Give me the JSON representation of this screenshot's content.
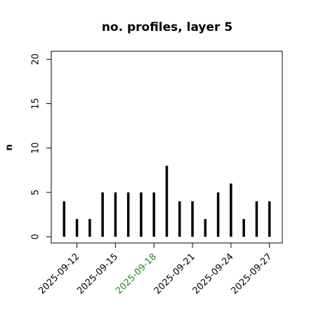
{
  "chart_data": {
    "type": "spike",
    "title": "no. profiles, layer 5",
    "y_label": "n",
    "x": [
      "2025-09-11",
      "2025-09-12",
      "2025-09-13",
      "2025-09-14",
      "2025-09-15",
      "2025-09-16",
      "2025-09-17",
      "2025-09-18",
      "2025-09-19",
      "2025-09-20",
      "2025-09-21",
      "2025-09-22",
      "2025-09-23",
      "2025-09-24",
      "2025-09-25",
      "2025-09-26",
      "2025-09-27"
    ],
    "values": [
      4,
      2,
      2,
      5,
      5,
      5,
      5,
      5,
      8,
      4,
      4,
      2,
      5,
      6,
      2,
      4,
      4
    ],
    "color": "#000000",
    "xlim": [
      "2025-09-10",
      "2025-09-28"
    ],
    "xticks": [
      "2025-09-12",
      "2025-09-15",
      "2025-09-18",
      "2025-09-21",
      "2025-09-24",
      "2025-09-27"
    ],
    "xtick_colors": [
      "#000000",
      "#000000",
      "#228b22",
      "#000000",
      "#000000",
      "#000000"
    ],
    "ylim": [
      -0.7,
      20.9
    ],
    "yticks": [
      0,
      5,
      10,
      15,
      20
    ]
  }
}
